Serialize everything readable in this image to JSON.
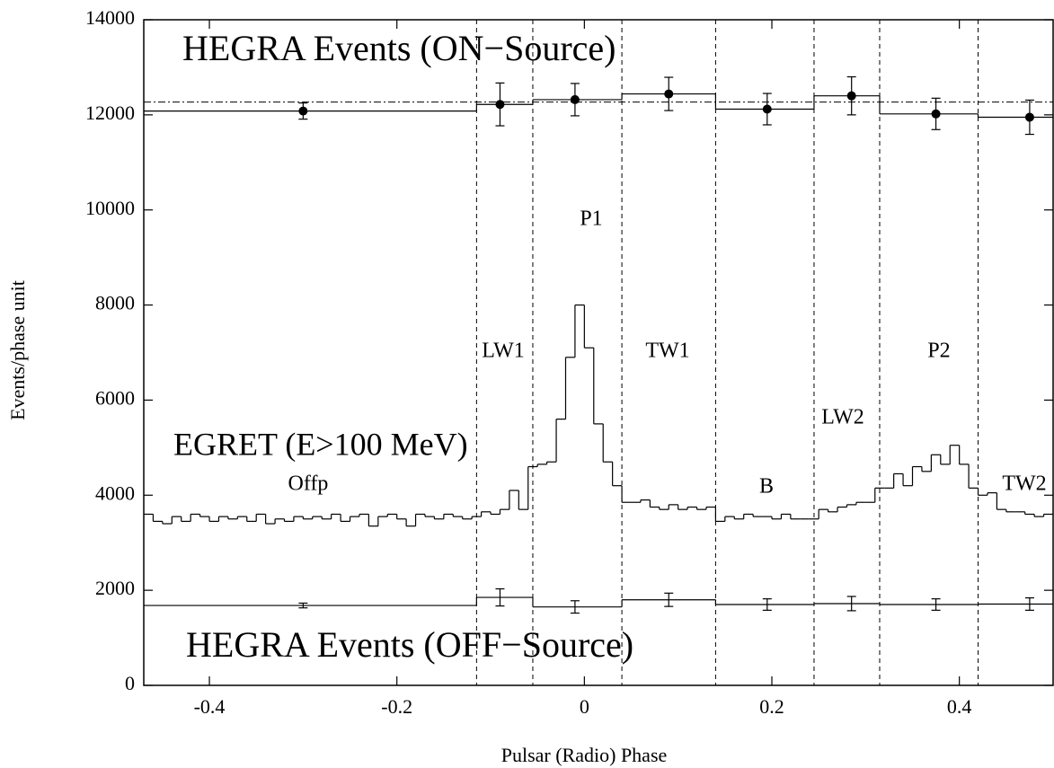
{
  "chart_data": {
    "type": "phasogram",
    "xlabel": "Pulsar (Radio) Phase",
    "ylabel": "Events/phase unit",
    "xlim": [
      -0.47,
      0.5
    ],
    "ylim": [
      0,
      14000
    ],
    "xticks": [
      -0.4,
      -0.2,
      0,
      0.2,
      0.4
    ],
    "yticks": [
      0,
      2000,
      4000,
      6000,
      8000,
      10000,
      12000,
      14000
    ],
    "phase_bins": [
      -0.47,
      -0.115,
      -0.055,
      0.04,
      0.14,
      0.245,
      0.315,
      0.42,
      0.5
    ],
    "region_labels": [
      "Offp",
      "LW1",
      "P1",
      "TW1",
      "B",
      "LW2",
      "P2",
      "TW2"
    ],
    "on_mean": 12270,
    "series": [
      {
        "name": "HEGRA Events (ON−Source)",
        "color": "#000000",
        "values": [
          12080,
          12220,
          12320,
          12440,
          12120,
          12400,
          12020,
          11950
        ],
        "points_x": [
          -0.3,
          -0.09,
          -0.01,
          0.09,
          0.195,
          0.285,
          0.375,
          0.475
        ],
        "errors": [
          170,
          450,
          340,
          350,
          330,
          400,
          330,
          360
        ]
      },
      {
        "name": "HEGRA Events (OFF−Source)",
        "color": "#000000",
        "values": [
          1680,
          1850,
          1650,
          1800,
          1700,
          1720,
          1700,
          1710
        ],
        "points_x": [
          -0.3,
          -0.09,
          -0.01,
          0.09,
          0.195,
          0.285,
          0.375,
          0.475
        ],
        "errors": [
          50,
          180,
          130,
          140,
          120,
          150,
          120,
          130
        ]
      },
      {
        "name": "EGRET (E>100 MeV)",
        "color": "#000000",
        "bins": [
          -0.47,
          -0.46,
          -0.45,
          -0.44,
          -0.43,
          -0.42,
          -0.41,
          -0.4,
          -0.39,
          -0.38,
          -0.37,
          -0.36,
          -0.35,
          -0.34,
          -0.33,
          -0.32,
          -0.31,
          -0.3,
          -0.29,
          -0.28,
          -0.27,
          -0.26,
          -0.25,
          -0.24,
          -0.23,
          -0.22,
          -0.21,
          -0.2,
          -0.19,
          -0.18,
          -0.17,
          -0.16,
          -0.15,
          -0.14,
          -0.13,
          -0.12,
          -0.11,
          -0.1,
          -0.09,
          -0.08,
          -0.07,
          -0.06,
          -0.05,
          -0.04,
          -0.03,
          -0.02,
          -0.01,
          0,
          0.01,
          0.02,
          0.03,
          0.04,
          0.05,
          0.06,
          0.07,
          0.08,
          0.09,
          0.1,
          0.11,
          0.12,
          0.13,
          0.14,
          0.15,
          0.16,
          0.17,
          0.18,
          0.19,
          0.2,
          0.21,
          0.22,
          0.23,
          0.24,
          0.25,
          0.26,
          0.27,
          0.28,
          0.29,
          0.3,
          0.31,
          0.32,
          0.33,
          0.34,
          0.35,
          0.36,
          0.37,
          0.38,
          0.39,
          0.4,
          0.41,
          0.42,
          0.43,
          0.44,
          0.45,
          0.46,
          0.47,
          0.48,
          0.49,
          0.5
        ],
        "values": [
          3600,
          3450,
          3400,
          3550,
          3450,
          3600,
          3550,
          3450,
          3550,
          3500,
          3550,
          3450,
          3600,
          3400,
          3500,
          3450,
          3550,
          3500,
          3550,
          3500,
          3600,
          3450,
          3550,
          3600,
          3350,
          3550,
          3600,
          3500,
          3350,
          3600,
          3550,
          3500,
          3600,
          3550,
          3500,
          3550,
          3650,
          3600,
          3700,
          4100,
          3700,
          4600,
          4650,
          4700,
          5600,
          6900,
          8000,
          7100,
          5500,
          4700,
          4200,
          3850,
          3850,
          3900,
          3750,
          3700,
          3800,
          3700,
          3750,
          3700,
          3750,
          3450,
          3550,
          3500,
          3600,
          3550,
          3550,
          3500,
          3600,
          3500,
          3500,
          3500,
          3700,
          3650,
          3750,
          3800,
          3850,
          3850,
          4150,
          4150,
          4450,
          4200,
          4600,
          4500,
          4850,
          4650,
          5050,
          4650,
          4150,
          4000,
          4050,
          3700,
          3650,
          3650,
          3600,
          3550,
          3600
        ]
      }
    ]
  }
}
